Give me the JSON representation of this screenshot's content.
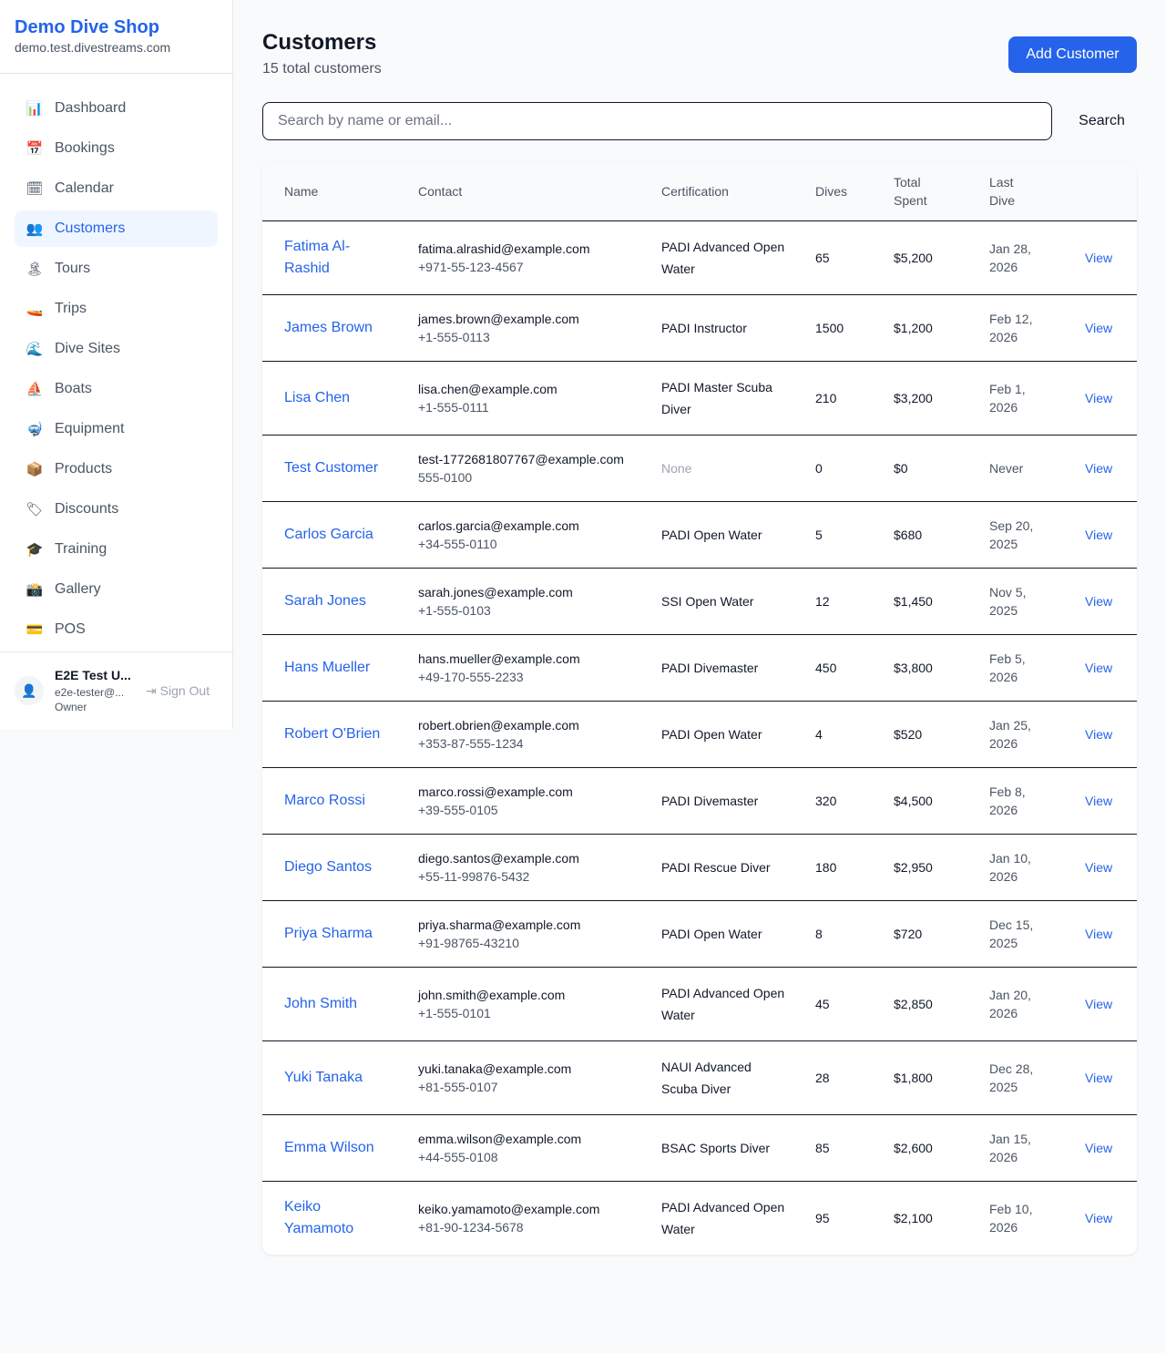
{
  "brand": {
    "title": "Demo Dive Shop",
    "domain": "demo.test.divestreams.com"
  },
  "nav": [
    {
      "label": "Dashboard",
      "icon": "📊",
      "name": "chart-icon"
    },
    {
      "label": "Bookings",
      "icon": "📅",
      "name": "calendar-17-icon"
    },
    {
      "label": "Calendar",
      "icon": "🗓",
      "name": "calendar-icon"
    },
    {
      "label": "Customers",
      "icon": "👥",
      "name": "users-icon",
      "active": true
    },
    {
      "label": "Tours",
      "icon": "🏝",
      "name": "island-icon"
    },
    {
      "label": "Trips",
      "icon": "🚤",
      "name": "boat-icon"
    },
    {
      "label": "Dive Sites",
      "icon": "🌊",
      "name": "wave-icon"
    },
    {
      "label": "Boats",
      "icon": "⛵",
      "name": "sailboat-icon"
    },
    {
      "label": "Equipment",
      "icon": "🤿",
      "name": "mask-icon"
    },
    {
      "label": "Products",
      "icon": "📦",
      "name": "package-icon"
    },
    {
      "label": "Discounts",
      "icon": "🏷",
      "name": "tag-icon"
    },
    {
      "label": "Training",
      "icon": "🎓",
      "name": "graduation-icon"
    },
    {
      "label": "Gallery",
      "icon": "📸",
      "name": "camera-icon"
    },
    {
      "label": "POS",
      "icon": "💳",
      "name": "card-icon"
    }
  ],
  "user": {
    "name": "E2E Test U...",
    "email": "e2e-tester@...",
    "role": "Owner",
    "signout": "Sign Out"
  },
  "page": {
    "title": "Customers",
    "subtitle": "15 total customers",
    "add_label": "Add Customer",
    "search_placeholder": "Search by name or email...",
    "search_label": "Search"
  },
  "table": {
    "headers": [
      "Name",
      "Contact",
      "Certification",
      "Dives",
      "Total Spent",
      "Last Dive"
    ],
    "view_label": "View",
    "rows": [
      {
        "name": "Fatima Al-Rashid",
        "email": "fatima.alrashid@example.com",
        "phone": "+971-55-123-4567",
        "cert": "PADI Advanced Open Water",
        "dives": "65",
        "spent": "$5,200",
        "last": "Jan 28, 2026"
      },
      {
        "name": "James Brown",
        "email": "james.brown@example.com",
        "phone": "+1-555-0113",
        "cert": "PADI Instructor",
        "dives": "1500",
        "spent": "$1,200",
        "last": "Feb 12, 2026"
      },
      {
        "name": "Lisa Chen",
        "email": "lisa.chen@example.com",
        "phone": "+1-555-0111",
        "cert": "PADI Master Scuba Diver",
        "dives": "210",
        "spent": "$3,200",
        "last": "Feb 1, 2026"
      },
      {
        "name": "Test Customer",
        "email": "test-1772681807767@example.com",
        "phone": "555-0100",
        "cert": "None",
        "dives": "0",
        "spent": "$0",
        "last": "Never"
      },
      {
        "name": "Carlos Garcia",
        "email": "carlos.garcia@example.com",
        "phone": "+34-555-0110",
        "cert": "PADI Open Water",
        "dives": "5",
        "spent": "$680",
        "last": "Sep 20, 2025"
      },
      {
        "name": "Sarah Jones",
        "email": "sarah.jones@example.com",
        "phone": "+1-555-0103",
        "cert": "SSI Open Water",
        "dives": "12",
        "spent": "$1,450",
        "last": "Nov 5, 2025"
      },
      {
        "name": "Hans Mueller",
        "email": "hans.mueller@example.com",
        "phone": "+49-170-555-2233",
        "cert": "PADI Divemaster",
        "dives": "450",
        "spent": "$3,800",
        "last": "Feb 5, 2026"
      },
      {
        "name": "Robert O'Brien",
        "email": "robert.obrien@example.com",
        "phone": "+353-87-555-1234",
        "cert": "PADI Open Water",
        "dives": "4",
        "spent": "$520",
        "last": "Jan 25, 2026"
      },
      {
        "name": "Marco Rossi",
        "email": "marco.rossi@example.com",
        "phone": "+39-555-0105",
        "cert": "PADI Divemaster",
        "dives": "320",
        "spent": "$4,500",
        "last": "Feb 8, 2026"
      },
      {
        "name": "Diego Santos",
        "email": "diego.santos@example.com",
        "phone": "+55-11-99876-5432",
        "cert": "PADI Rescue Diver",
        "dives": "180",
        "spent": "$2,950",
        "last": "Jan 10, 2026"
      },
      {
        "name": "Priya Sharma",
        "email": "priya.sharma@example.com",
        "phone": "+91-98765-43210",
        "cert": "PADI Open Water",
        "dives": "8",
        "spent": "$720",
        "last": "Dec 15, 2025"
      },
      {
        "name": "John Smith",
        "email": "john.smith@example.com",
        "phone": "+1-555-0101",
        "cert": "PADI Advanced Open Water",
        "dives": "45",
        "spent": "$2,850",
        "last": "Jan 20, 2026"
      },
      {
        "name": "Yuki Tanaka",
        "email": "yuki.tanaka@example.com",
        "phone": "+81-555-0107",
        "cert": "NAUI Advanced Scuba Diver",
        "dives": "28",
        "spent": "$1,800",
        "last": "Dec 28, 2025"
      },
      {
        "name": "Emma Wilson",
        "email": "emma.wilson@example.com",
        "phone": "+44-555-0108",
        "cert": "BSAC Sports Diver",
        "dives": "85",
        "spent": "$2,600",
        "last": "Jan 15, 2026"
      },
      {
        "name": "Keiko Yamamoto",
        "email": "keiko.yamamoto@example.com",
        "phone": "+81-90-1234-5678",
        "cert": "PADI Advanced Open Water",
        "dives": "95",
        "spent": "$2,100",
        "last": "Feb 10, 2026"
      }
    ]
  }
}
